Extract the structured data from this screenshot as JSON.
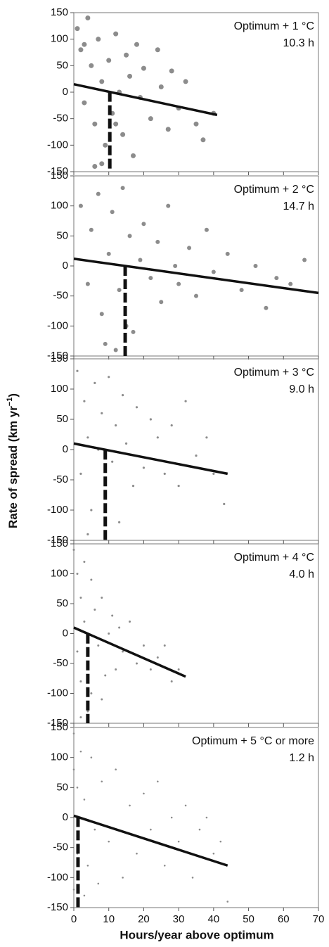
{
  "ylabel": {
    "text": "Rate of spread (km yr",
    "superscript": "−1",
    "suffix": ")"
  },
  "xlabel": "Hours/year above optimum",
  "chart_data": [
    {
      "type": "scatter",
      "annotation": "Optimum + 1 °C",
      "threshold": {
        "value": 10.3,
        "label": "10.3 h"
      },
      "x": [
        1,
        2,
        3,
        4,
        5,
        6,
        7,
        8,
        9,
        10,
        11,
        12,
        13,
        14,
        15,
        16,
        17,
        18,
        19,
        20,
        22,
        24,
        25,
        27,
        28,
        30,
        32,
        35,
        37,
        40,
        6,
        8,
        3,
        12
      ],
      "y": [
        120,
        80,
        -20,
        140,
        50,
        -60,
        100,
        20,
        -100,
        60,
        -40,
        110,
        0,
        -80,
        70,
        30,
        -120,
        90,
        -10,
        45,
        -50,
        80,
        10,
        -70,
        40,
        -30,
        20,
        -60,
        -90,
        -40,
        -140,
        -135,
        90,
        -60
      ],
      "color": "#8c8c8c",
      "trend": {
        "x": [
          0,
          41
        ],
        "y": [
          15,
          -43
        ]
      },
      "xlim": [
        0,
        70
      ],
      "ylim": [
        -150,
        150
      ],
      "yticks": [
        -150,
        -100,
        -50,
        0,
        50,
        100,
        150
      ],
      "xticks": [
        0,
        10,
        20,
        30,
        40,
        50,
        60,
        70
      ],
      "show_xticklabels": false
    },
    {
      "type": "scatter",
      "annotation": "Optimum + 2 °C",
      "threshold": {
        "value": 14.7,
        "label": "14.7 h"
      },
      "x": [
        2,
        4,
        5,
        7,
        8,
        10,
        11,
        13,
        14,
        16,
        17,
        19,
        20,
        22,
        24,
        25,
        27,
        29,
        30,
        33,
        35,
        38,
        40,
        44,
        48,
        52,
        55,
        58,
        62,
        66,
        9,
        12,
        15
      ],
      "y": [
        100,
        -30,
        60,
        120,
        -80,
        20,
        90,
        -40,
        130,
        50,
        -110,
        10,
        70,
        -20,
        40,
        -60,
        100,
        0,
        -30,
        30,
        -50,
        60,
        -10,
        20,
        -40,
        0,
        -70,
        -20,
        -30,
        10,
        -130,
        -140,
        -100
      ],
      "color": "#8c8c8c",
      "trend": {
        "x": [
          0,
          70
        ],
        "y": [
          12,
          -45
        ]
      },
      "xlim": [
        0,
        70
      ],
      "ylim": [
        -150,
        150
      ],
      "yticks": [
        -150,
        -100,
        -50,
        0,
        50,
        100,
        150
      ],
      "xticks": [
        0,
        10,
        20,
        30,
        40,
        50,
        60,
        70
      ],
      "show_xticklabels": false
    },
    {
      "type": "scatter",
      "annotation": "Optimum + 3 °C",
      "threshold": {
        "value": 9.0,
        "label": "9.0 h"
      },
      "x": [
        1,
        2,
        3,
        4,
        5,
        6,
        7,
        8,
        9,
        10,
        11,
        12,
        13,
        14,
        15,
        17,
        18,
        20,
        22,
        24,
        26,
        28,
        30,
        32,
        35,
        38,
        40,
        43,
        4,
        9
      ],
      "y": [
        130,
        -40,
        80,
        20,
        -100,
        110,
        0,
        60,
        -70,
        120,
        -20,
        40,
        -120,
        90,
        10,
        -60,
        70,
        -30,
        50,
        20,
        -40,
        40,
        -60,
        80,
        -10,
        20,
        -40,
        -90,
        -140,
        -145
      ],
      "color": "#8c8c8c",
      "trend": {
        "x": [
          0,
          44
        ],
        "y": [
          10,
          -40
        ]
      },
      "xlim": [
        0,
        70
      ],
      "ylim": [
        -150,
        150
      ],
      "yticks": [
        -150,
        -100,
        -50,
        0,
        50,
        100,
        150
      ],
      "xticks": [
        0,
        10,
        20,
        30,
        40,
        50,
        60,
        70
      ],
      "show_xticklabels": false
    },
    {
      "type": "scatter",
      "annotation": "Optimum + 4 °C",
      "threshold": {
        "value": 4.0,
        "label": "4.0 h"
      },
      "x": [
        0,
        1,
        1,
        2,
        2,
        3,
        3,
        4,
        5,
        5,
        6,
        7,
        8,
        9,
        10,
        11,
        12,
        13,
        14,
        16,
        18,
        20,
        22,
        24,
        26,
        28,
        30,
        2,
        4,
        8
      ],
      "y": [
        140,
        -30,
        100,
        60,
        -80,
        120,
        20,
        -50,
        90,
        -100,
        40,
        -20,
        60,
        -70,
        0,
        30,
        -60,
        10,
        -30,
        20,
        -50,
        -20,
        -60,
        -40,
        -20,
        -80,
        -60,
        -140,
        -130,
        -110
      ],
      "color": "#8c8c8c",
      "trend": {
        "x": [
          0,
          32
        ],
        "y": [
          10,
          -72
        ]
      },
      "xlim": [
        0,
        70
      ],
      "ylim": [
        -150,
        150
      ],
      "yticks": [
        -150,
        -100,
        -50,
        0,
        50,
        100,
        150
      ],
      "xticks": [
        0,
        10,
        20,
        30,
        40,
        50,
        60,
        70
      ],
      "show_xticklabels": false
    },
    {
      "type": "scatter",
      "annotation": "Optimum + 5 °C or more",
      "threshold": {
        "value": 1.2,
        "label": "1.2 h"
      },
      "x": [
        0,
        0,
        0,
        1,
        1,
        2,
        3,
        4,
        5,
        6,
        8,
        10,
        12,
        14,
        16,
        18,
        20,
        22,
        24,
        26,
        28,
        30,
        32,
        34,
        36,
        38,
        40,
        42,
        44,
        3,
        7
      ],
      "y": [
        140,
        80,
        -120,
        50,
        -60,
        110,
        30,
        -80,
        100,
        -20,
        60,
        -40,
        80,
        -100,
        20,
        -60,
        40,
        -20,
        60,
        -80,
        0,
        -40,
        20,
        -100,
        -20,
        0,
        -60,
        -40,
        -140,
        -130,
        -110
      ],
      "color": "#8c8c8c",
      "trend": {
        "x": [
          0,
          44
        ],
        "y": [
          3,
          -80
        ]
      },
      "xlim": [
        0,
        70
      ],
      "ylim": [
        -150,
        150
      ],
      "yticks": [
        -150,
        -100,
        -50,
        0,
        50,
        100,
        150
      ],
      "xticks": [
        0,
        10,
        20,
        30,
        40,
        50,
        60,
        70
      ],
      "show_xticklabels": true
    }
  ]
}
